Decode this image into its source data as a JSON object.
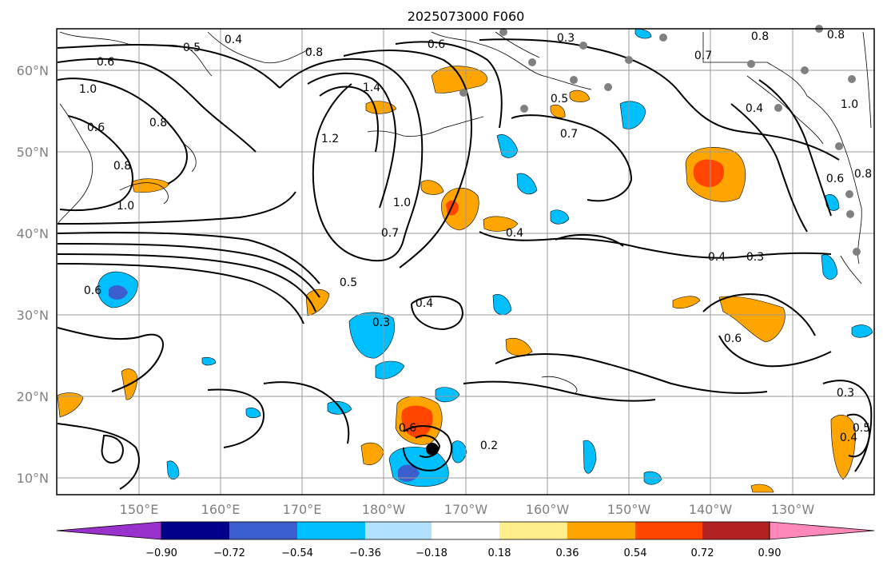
{
  "figure": {
    "title": "2025073000 F060",
    "lat_ticks": [
      "60°N",
      "50°N",
      "40°N",
      "30°N",
      "20°N",
      "10°N"
    ],
    "lon_ticks": [
      "150°E",
      "160°E",
      "170°E",
      "180°W",
      "170°W",
      "160°W",
      "150°W",
      "140°W",
      "130°W"
    ],
    "colorbar": {
      "ticks": [
        "−0.90",
        "−0.72",
        "−0.54",
        "−0.36",
        "−0.18",
        "0.18",
        "0.36",
        "0.54",
        "0.72",
        "0.90"
      ],
      "colors": [
        "#9932CC",
        "#00008B",
        "#3A5FCD",
        "#00BFFF",
        "#B0E2FF",
        "#FFFFFF",
        "#FFEC8B",
        "#FFA500",
        "#FF4500",
        "#B22222",
        "#FF88BB"
      ]
    }
  },
  "contour_labels": [
    "0.5",
    "0.4",
    "0.6",
    "0.8",
    "1.0",
    "0.6",
    "0.8",
    "1.4",
    "1.2",
    "0.6",
    "0.3",
    "0.8",
    "0.7",
    "0.5",
    "0.7",
    "0.4",
    "1.0",
    "0.7",
    "0.5",
    "0.4",
    "0.3",
    "0.4",
    "0.3",
    "0.6",
    "0.2",
    "0.6",
    "0.8",
    "0.3",
    "0.5",
    "0.4",
    "1.0",
    "0.8",
    "1.0",
    "0.6",
    "0.4",
    "0.8",
    "0.6"
  ]
}
